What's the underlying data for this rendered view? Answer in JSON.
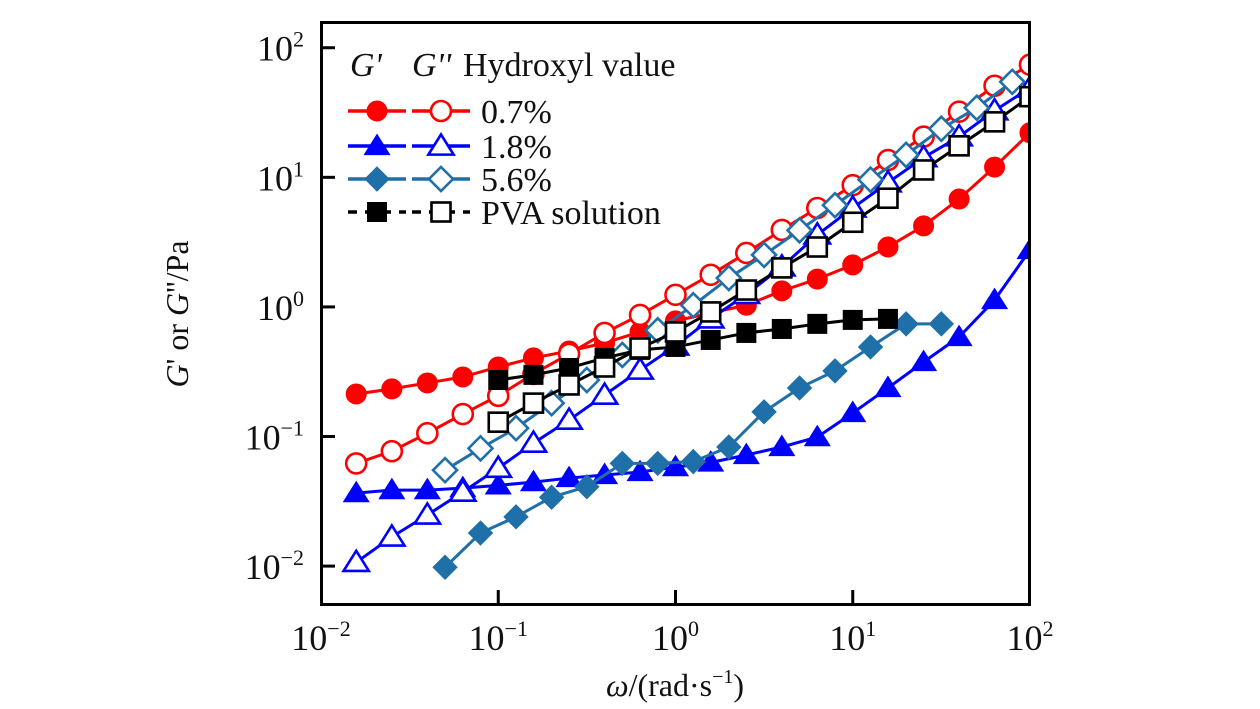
{
  "chart_data": {
    "type": "line",
    "title": "",
    "xlabel": "ω/(rad·s⁻¹)",
    "ylabel": "G' or G''/Pa",
    "xscale": "log",
    "yscale": "log",
    "xlim": [
      0.01,
      100
    ],
    "ylim": [
      0.0051,
      158
    ],
    "grid": false,
    "legend_placement": "top-left",
    "x_ticks": [
      {
        "value": 0.01,
        "base": "10",
        "exp": "−2"
      },
      {
        "value": 0.1,
        "base": "10",
        "exp": "−1"
      },
      {
        "value": 1,
        "base": "10",
        "exp": "0"
      },
      {
        "value": 10,
        "base": "10",
        "exp": "1"
      },
      {
        "value": 100,
        "base": "10",
        "exp": "2"
      }
    ],
    "y_ticks": [
      {
        "value": 0.01,
        "base": "10",
        "exp": "−2"
      },
      {
        "value": 0.1,
        "base": "10",
        "exp": "−1"
      },
      {
        "value": 1,
        "base": "10",
        "exp": "0"
      },
      {
        "value": 10,
        "base": "10",
        "exp": "1"
      },
      {
        "value": 100,
        "base": "10",
        "exp": "2"
      }
    ],
    "legend": {
      "header_gp": "G'",
      "header_gpp": "G''",
      "header_title": "Hydroxyl value",
      "entries": [
        {
          "label": "0.7%",
          "color": "#ff0000",
          "marker": "circle",
          "dashed": false
        },
        {
          "label": "1.8%",
          "color": "#0000ff",
          "marker": "triangle",
          "dashed": false
        },
        {
          "label": "5.6%",
          "color": "#1f6fa8",
          "marker": "diamond",
          "dashed": false
        },
        {
          "label": "PVA solution",
          "color": "#000000",
          "marker": "square",
          "dashed": true
        }
      ]
    },
    "series": [
      {
        "name": "G' 0.7%",
        "group": "0.7%",
        "modulus": "G'",
        "color": "#ff0000",
        "marker": "circle",
        "filled": true,
        "x": [
          0.0158,
          0.0251,
          0.0398,
          0.0631,
          0.1,
          0.158,
          0.251,
          0.398,
          0.631,
          1.0,
          1.58,
          2.51,
          3.98,
          6.31,
          10,
          15.8,
          25.1,
          39.8,
          63.1,
          100
        ],
        "y": [
          0.213,
          0.233,
          0.259,
          0.288,
          0.344,
          0.404,
          0.457,
          0.527,
          0.641,
          0.78,
          0.9,
          1.03,
          1.33,
          1.64,
          2.11,
          2.9,
          4.22,
          6.8,
          12.0,
          22.1
        ]
      },
      {
        "name": "G'' 0.7%",
        "group": "0.7%",
        "modulus": "G''",
        "color": "#ff0000",
        "marker": "circle",
        "filled": false,
        "x": [
          0.0158,
          0.0251,
          0.0398,
          0.0631,
          0.1,
          0.158,
          0.251,
          0.398,
          0.631,
          1.0,
          1.58,
          2.51,
          3.98,
          6.31,
          10,
          15.8,
          25.1,
          39.8,
          63.1,
          100
        ],
        "y": [
          0.062,
          0.077,
          0.106,
          0.149,
          0.206,
          0.304,
          0.434,
          0.63,
          0.867,
          1.24,
          1.77,
          2.61,
          3.93,
          5.8,
          8.7,
          13.6,
          20.6,
          32.1,
          50.9,
          74
        ]
      },
      {
        "name": "G' 1.8%",
        "group": "1.8%",
        "modulus": "G'",
        "color": "#0000ff",
        "marker": "triangle",
        "filled": true,
        "x": [
          0.0158,
          0.0251,
          0.0398,
          0.0631,
          0.1,
          0.158,
          0.251,
          0.398,
          0.631,
          1.0,
          1.58,
          2.51,
          3.98,
          6.31,
          10,
          15.8,
          25.1,
          39.8,
          63.1,
          100
        ],
        "y": [
          0.0366,
          0.0386,
          0.0386,
          0.04,
          0.042,
          0.0445,
          0.0478,
          0.0505,
          0.0532,
          0.058,
          0.063,
          0.072,
          0.083,
          0.099,
          0.152,
          0.237,
          0.376,
          0.586,
          1.13,
          2.75
        ]
      },
      {
        "name": "G'' 1.8%",
        "group": "1.8%",
        "modulus": "G''",
        "color": "#0000ff",
        "marker": "triangle",
        "filled": false,
        "x": [
          0.0158,
          0.0251,
          0.0398,
          0.0631,
          0.1,
          0.158,
          0.251,
          0.398,
          0.631,
          1.0,
          1.58,
          2.51,
          3.98,
          6.31,
          10,
          15.8,
          25.1,
          39.8,
          63.1,
          100
        ],
        "y": [
          0.0107,
          0.0168,
          0.0248,
          0.0373,
          0.057,
          0.089,
          0.134,
          0.209,
          0.326,
          0.5,
          0.81,
          1.25,
          2.04,
          3.6,
          5.8,
          9.1,
          14.2,
          20.6,
          32.7,
          49
        ]
      },
      {
        "name": "G' 5.6%",
        "group": "5.6%",
        "modulus": "G'",
        "color": "#1f6fa8",
        "marker": "diamond",
        "filled": true,
        "x": [
          0.0501,
          0.0794,
          0.126,
          0.2,
          0.316,
          0.501,
          0.794,
          1.26,
          2.0,
          3.16,
          5.01,
          7.94,
          12.6,
          20.0,
          31.6
        ],
        "y": [
          0.0098,
          0.018,
          0.024,
          0.034,
          0.041,
          0.062,
          0.062,
          0.064,
          0.083,
          0.155,
          0.237,
          0.321,
          0.491,
          0.74,
          0.74
        ]
      },
      {
        "name": "G'' 5.6%",
        "group": "5.6%",
        "modulus": "G''",
        "color": "#1f6fa8",
        "marker": "diamond",
        "filled": false,
        "x": [
          0.0501,
          0.0794,
          0.126,
          0.2,
          0.316,
          0.501,
          0.794,
          1.26,
          2.0,
          3.16,
          5.01,
          7.94,
          12.6,
          20.0,
          31.6,
          50.1,
          79.4
        ],
        "y": [
          0.055,
          0.081,
          0.116,
          0.181,
          0.273,
          0.426,
          0.66,
          1.03,
          1.67,
          2.52,
          3.9,
          6.1,
          9.6,
          14.9,
          23.7,
          34.4,
          54.6
        ]
      },
      {
        "name": "G' PVA solution",
        "group": "PVA solution",
        "modulus": "G'",
        "color": "#000000",
        "marker": "square",
        "filled": true,
        "x": [
          0.1,
          0.158,
          0.251,
          0.398,
          0.631,
          1.0,
          1.58,
          2.51,
          3.98,
          6.31,
          10,
          15.8
        ],
        "y": [
          0.273,
          0.299,
          0.338,
          0.404,
          0.466,
          0.491,
          0.556,
          0.63,
          0.676,
          0.74,
          0.794,
          0.808
        ]
      },
      {
        "name": "G'' PVA solution",
        "group": "PVA solution",
        "modulus": "G''",
        "color": "#000000",
        "marker": "square",
        "filled": false,
        "x": [
          0.1,
          0.158,
          0.251,
          0.398,
          0.631,
          1.0,
          1.58,
          2.51,
          3.98,
          6.31,
          10,
          15.8,
          25.1,
          39.8,
          63.1,
          100
        ],
        "y": [
          0.129,
          0.181,
          0.25,
          0.344,
          0.482,
          0.641,
          0.915,
          1.35,
          2.0,
          2.9,
          4.5,
          6.9,
          11.4,
          17.5,
          26.8,
          41.9
        ]
      }
    ]
  }
}
